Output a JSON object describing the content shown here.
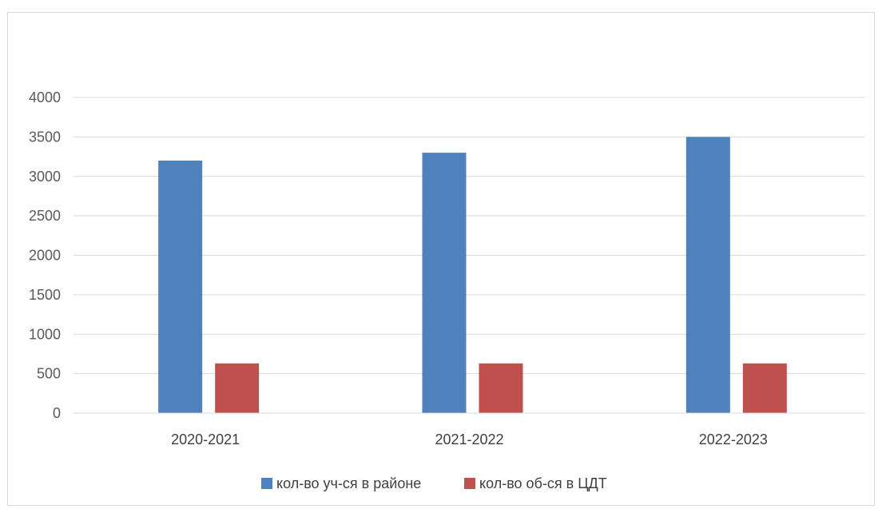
{
  "chart_data": {
    "type": "bar",
    "title": "",
    "xlabel": "",
    "ylabel": "",
    "categories": [
      "2020-2021",
      "2021-2022",
      "2022-2023"
    ],
    "series": [
      {
        "name": "кол-во уч-ся в районе",
        "color": "#4f81bd",
        "values": [
          3200,
          3300,
          3500
        ]
      },
      {
        "name": "кол-во об-ся в ЦДТ",
        "color": "#c0504d",
        "values": [
          630,
          630,
          630
        ]
      }
    ],
    "ylim": [
      0,
      4000
    ],
    "yticks": [
      0,
      500,
      1000,
      1500,
      2000,
      2500,
      3000,
      3500,
      4000
    ],
    "grid": true,
    "legend_position": "bottom"
  }
}
